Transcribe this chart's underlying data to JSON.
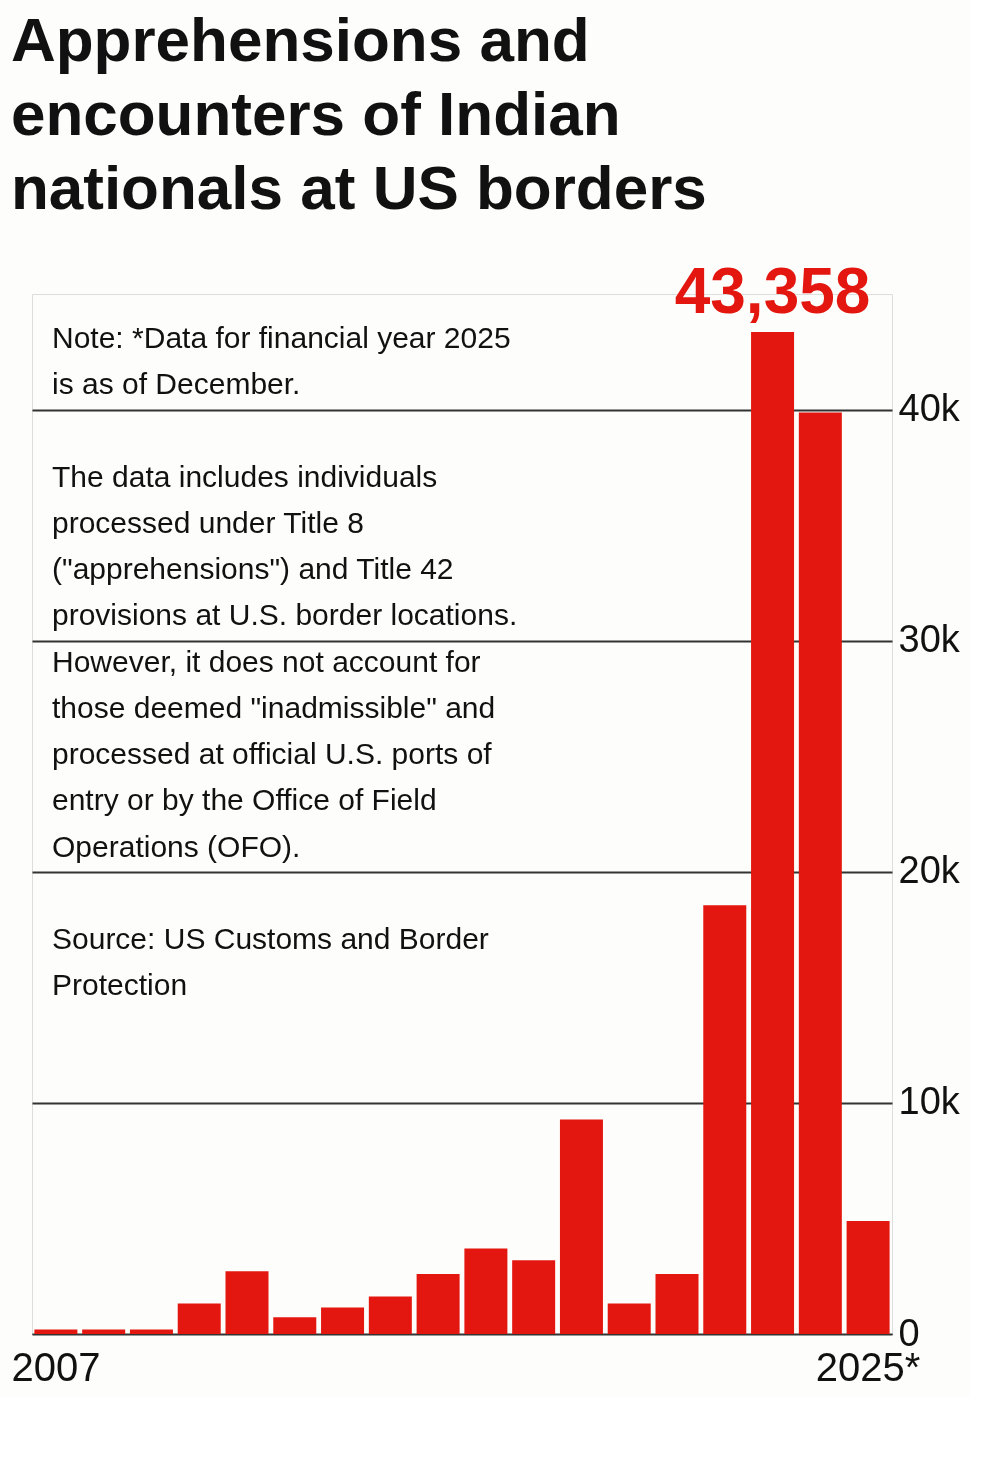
{
  "chart_data": {
    "type": "bar",
    "title": "Apprehensions and encounters of Indian nationals at US borders",
    "categories": [
      "2007",
      null,
      null,
      null,
      null,
      null,
      null,
      null,
      null,
      null,
      null,
      null,
      null,
      null,
      null,
      null,
      null,
      "2025*"
    ],
    "values": [
      200,
      200,
      200,
      1320,
      2720,
      720,
      1150,
      1620,
      2600,
      3700,
      3190,
      9280,
      1320,
      2600,
      18550,
      43358,
      39870,
      4890
    ],
    "value_labels": [
      null,
      null,
      null,
      null,
      null,
      null,
      null,
      null,
      null,
      null,
      null,
      null,
      null,
      null,
      null,
      "43,358",
      null,
      null
    ],
    "color": "#e3170f",
    "ylim": [
      0,
      45000
    ],
    "yticks": [
      0,
      {
        "value": 10000,
        "label": "10k"
      },
      {
        "value": 20000,
        "label": "20k"
      },
      {
        "value": 30000,
        "label": "30k"
      },
      {
        "value": 40000,
        "label": "40k"
      }
    ],
    "grid": "y",
    "annotations": [
      "Note: *Data for financial year 2025 is as of December.",
      "The data includes individuals processed under Title 8 (\"apprehensions\") and Title 42 provisions at U.S. border locations. However, it does not account for those deemed \"inadmissible\" and processed at official U.S. ports of entry or by the Office of Field Operations (OFO).",
      "Source: US Customs and Border Protection"
    ]
  }
}
